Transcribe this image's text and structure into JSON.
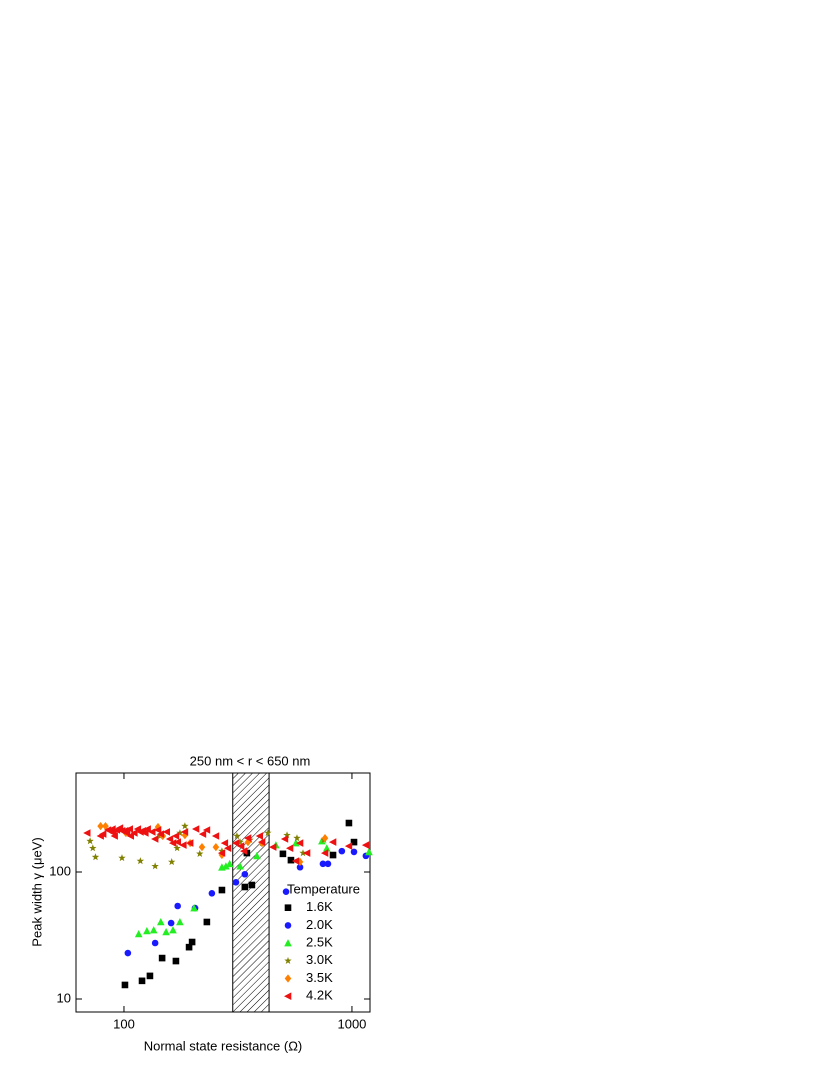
{
  "chart_data": {
    "type": "scatter",
    "title": "250 nm < r < 650 nm",
    "x_label": "Normal state resistance (Ω)",
    "y_label": "Peak width γ (μeV)",
    "x_log": true,
    "y_log": true,
    "xlim": [
      61.6,
      1200
    ],
    "ylim": [
      7.9,
      602
    ],
    "xticks": [
      100,
      1000
    ],
    "yticks": [
      10,
      100
    ],
    "shaded_xrange": [
      300,
      433
    ],
    "legend_title": "Temperature",
    "legend_position": "lower right",
    "series": [
      {
        "name": "1.6K",
        "color": "#000000",
        "marker": "square",
        "x": [
          101,
          120,
          130,
          147,
          169,
          193,
          199,
          231,
          269,
          339,
          346,
          364,
          498,
          540,
          826,
          970,
          1021
        ],
        "values": [
          12.9,
          13.9,
          15.2,
          21,
          19.9,
          25.6,
          28.1,
          40.4,
          72.1,
          76.2,
          141,
          79,
          139,
          124,
          136,
          243,
          172
        ]
      },
      {
        "name": "2.0K",
        "color": "#1a1aff",
        "marker": "circle",
        "x": [
          104,
          137,
          161,
          172,
          205,
          243,
          310,
          339,
          514,
          592,
          746,
          785,
          903,
          1021,
          1151
        ],
        "values": [
          23,
          27.6,
          39.6,
          54,
          52,
          68,
          83,
          96,
          70,
          109,
          116,
          116,
          146,
          144,
          134
        ]
      },
      {
        "name": "2.5K",
        "color": "#22ee22",
        "marker": "triangle",
        "x": [
          116,
          126,
          135,
          145,
          153,
          164,
          176,
          203,
          269,
          280,
          291,
          323,
          383,
          464,
          568,
          738,
          776,
          1188
        ],
        "values": [
          32.5,
          34.3,
          34.9,
          40.4,
          33.7,
          34.9,
          40.4,
          52,
          109,
          111,
          116,
          111,
          134,
          163,
          169,
          175,
          154,
          144
        ]
      },
      {
        "name": "3.0K",
        "color": "#808000",
        "marker": "star",
        "x": [
          71,
          73,
          75,
          98,
          118,
          137,
          144,
          162,
          171,
          176,
          185,
          215,
          269,
          313,
          323,
          357,
          403,
          428,
          519,
          574,
          610,
          754
        ],
        "values": [
          175,
          154,
          131,
          129,
          122,
          111,
          192,
          120,
          154,
          203,
          230,
          139,
          146,
          192,
          172,
          179,
          169,
          203,
          195,
          185,
          141,
          179
        ]
      },
      {
        "name": "3.5K",
        "color": "#ff8000",
        "marker": "diamond",
        "x": [
          79,
          83,
          102,
          141,
          148,
          185,
          195,
          220,
          253,
          269,
          350,
          403,
          592,
          762
        ],
        "values": [
          230,
          230,
          203,
          226,
          192,
          195,
          169,
          157,
          157,
          136,
          172,
          169,
          120,
          185
        ]
      },
      {
        "name": "4.2K",
        "color": "#ee1111",
        "marker": "triangle-left",
        "x": [
          69,
          79,
          81,
          85,
          87,
          89,
          90,
          91,
          93,
          96,
          98,
          101,
          103,
          106,
          107,
          111,
          115,
          118,
          121,
          124,
          127,
          133,
          137,
          141,
          145,
          154,
          159,
          164,
          169,
          172,
          182,
          185,
          195,
          207,
          222,
          231,
          253,
          269,
          277,
          286,
          310,
          326,
          336,
          350,
          394,
          403,
          451,
          508,
          535,
          568,
          592,
          635,
          762,
          826,
          970,
          1151
        ],
        "values": [
          203,
          192,
          199,
          214,
          211,
          218,
          203,
          192,
          214,
          222,
          211,
          211,
          203,
          218,
          192,
          203,
          218,
          207,
          211,
          203,
          218,
          207,
          182,
          214,
          199,
          207,
          182,
          169,
          192,
          172,
          163,
          207,
          169,
          218,
          199,
          214,
          192,
          141,
          169,
          154,
          169,
          160,
          146,
          185,
          192,
          172,
          157,
          182,
          154,
          122,
          169,
          141,
          141,
          172,
          160,
          163
        ]
      }
    ]
  }
}
